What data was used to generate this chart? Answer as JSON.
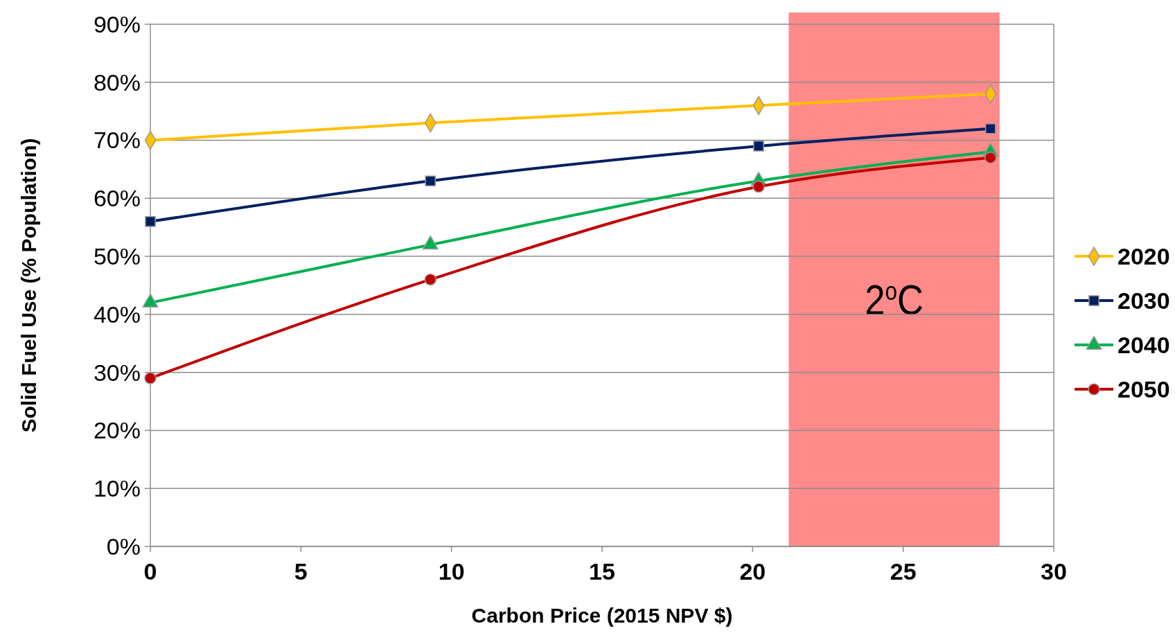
{
  "chart_data": {
    "type": "line",
    "xlabel": "Carbon Price (2015 NPV $)",
    "ylabel": "Solid Fuel Use (% Population)",
    "xlim": [
      0,
      30
    ],
    "xticks": [
      0,
      5,
      10,
      15,
      20,
      25,
      30
    ],
    "ylim": [
      0,
      90
    ],
    "yticks": [
      {
        "value": 0,
        "label": "0%"
      },
      {
        "value": 10,
        "label": "10%"
      },
      {
        "value": 20,
        "label": "20%"
      },
      {
        "value": 30,
        "label": "30%"
      },
      {
        "value": 40,
        "label": "40%"
      },
      {
        "value": 50,
        "label": "50%"
      },
      {
        "value": 60,
        "label": "60%"
      },
      {
        "value": 70,
        "label": "70%"
      },
      {
        "value": 80,
        "label": "80%"
      },
      {
        "value": 90,
        "label": "90%"
      }
    ],
    "x": [
      0,
      9.3,
      20.2,
      27.9
    ],
    "series": [
      {
        "name": "2020",
        "color": "#ffc000",
        "marker": "diamond",
        "values": [
          70,
          73,
          76,
          78
        ]
      },
      {
        "name": "2030",
        "color": "#002060",
        "marker": "square",
        "values": [
          56,
          63,
          69,
          72
        ]
      },
      {
        "name": "2040",
        "color": "#00b050",
        "marker": "triangle",
        "values": [
          42,
          52,
          63,
          68
        ]
      },
      {
        "name": "2050",
        "color": "#c00000",
        "marker": "circle",
        "values": [
          29,
          46,
          62,
          67
        ]
      }
    ],
    "bands": [
      {
        "axis": "x",
        "from": 21.2,
        "to": 28.2,
        "label": "2$^{o}$C",
        "color": "#ff8a8a"
      }
    ],
    "grid": "y",
    "legend": "right",
    "line_style": "solid"
  }
}
